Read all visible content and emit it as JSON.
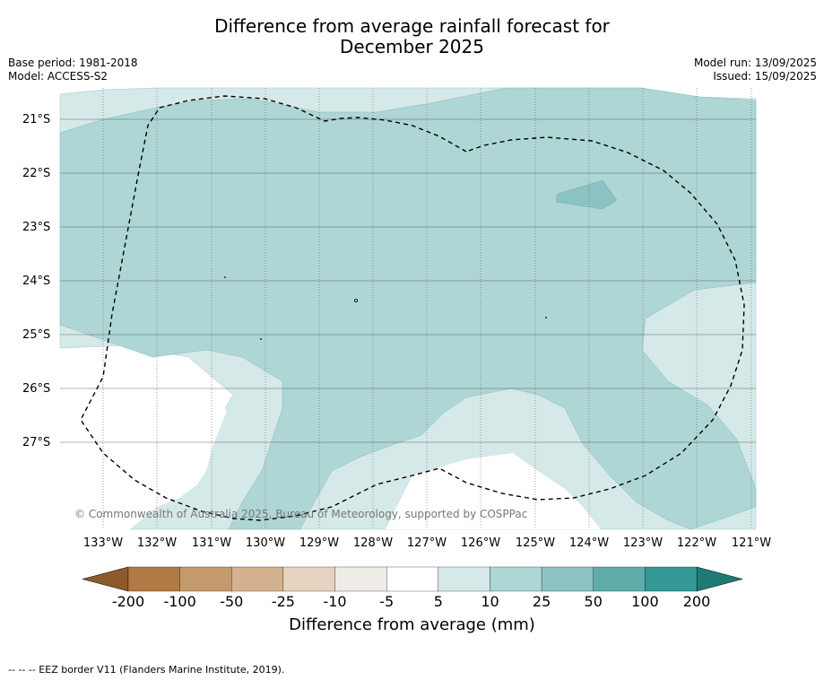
{
  "title_line1": "Difference from average rainfall forecast for",
  "title_line2": "December 2025",
  "base_period": "Base period: 1981-2018",
  "model": "Model: ACCESS-S2",
  "model_run": "Model run: 13/09/2025",
  "issued": "Issued: 15/09/2025",
  "lat_labels": [
    "21°S",
    "22°S",
    "23°S",
    "24°S",
    "25°S",
    "26°S",
    "27°S"
  ],
  "lon_labels": [
    "133°W",
    "132°W",
    "131°W",
    "130°W",
    "129°W",
    "128°W",
    "127°W",
    "126°W",
    "125°W",
    "124°W",
    "123°W",
    "122°W",
    "121°W"
  ],
  "copyright": "© Commonwealth of Australia 2025, Bureau of Meteorology, supported by COSPPac",
  "colorbar": {
    "ticks": [
      "-200",
      "-100",
      "-50",
      "-25",
      "-10",
      "-5",
      "5",
      "10",
      "25",
      "50",
      "100",
      "200"
    ],
    "colors": [
      "#8c5a2b",
      "#b07a45",
      "#c49a6c",
      "#d4b290",
      "#e6d4c0",
      "#efebe7",
      "#ffffff",
      "#d5e9e8",
      "#aed6d5",
      "#8bc3c2",
      "#5eadab",
      "#339995",
      "#1f7a75"
    ],
    "label": "Difference from average (mm)"
  },
  "footnote": "-- -- -- EEZ border V11 (Flanders Marine Institute, 2019)."
}
